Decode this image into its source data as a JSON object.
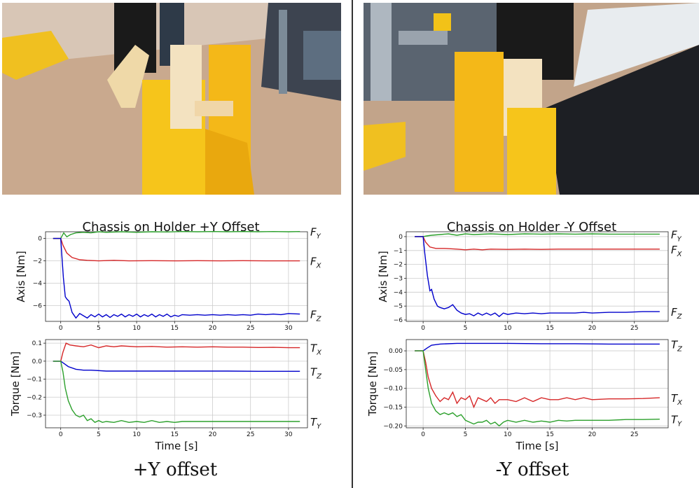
{
  "captions": {
    "left": "+Y offset",
    "right": "-Y offset"
  },
  "photos": {
    "left": {
      "subject": "yellow chassis held by gripper over holder",
      "colors": {
        "table": "#c9a98e",
        "part": "#f6c51b",
        "gripper": "#1a1a1a"
      }
    },
    "right": {
      "subject": "yellow chassis held by gripper over holder",
      "colors": {
        "table": "#c2a48a",
        "part": "#f6c51b",
        "gripper": "#1a1a1a"
      }
    }
  },
  "chart_data": [
    {
      "id": "left-force",
      "type": "line",
      "title": "Chassis on Holder +Y Offset",
      "xlabel": "",
      "ylabel": "Axis [Nm]",
      "xlim": [
        -2,
        32.5
      ],
      "ylim": [
        -7.4,
        0.6
      ],
      "xticks": [
        0,
        5,
        10,
        15,
        20,
        25,
        30
      ],
      "yticks": [
        0,
        -2,
        -4,
        -6
      ],
      "grid": true,
      "series": [
        {
          "name": "F_Y",
          "label_main": "F",
          "label_sub": "Y",
          "color": "#2ca02c",
          "x": [
            -1,
            0,
            0.4,
            0.8,
            1.3,
            2,
            3,
            4,
            5,
            6,
            8,
            10,
            12,
            14,
            16,
            18,
            20,
            22,
            24,
            26,
            28,
            30,
            31.5
          ],
          "y": [
            0,
            0,
            0.5,
            0.15,
            0.35,
            0.5,
            0.55,
            0.5,
            0.6,
            0.55,
            0.6,
            0.55,
            0.6,
            0.58,
            0.62,
            0.6,
            0.62,
            0.6,
            0.62,
            0.6,
            0.62,
            0.6,
            0.62
          ]
        },
        {
          "name": "F_X",
          "label_main": "F",
          "label_sub": "X",
          "color": "#d62728",
          "x": [
            -1,
            0,
            0.3,
            0.8,
            1.5,
            2.5,
            3.5,
            5,
            7,
            9,
            12,
            15,
            18,
            21,
            24,
            27,
            30,
            31.5
          ],
          "y": [
            0,
            0,
            -0.6,
            -1.3,
            -1.7,
            -1.9,
            -1.95,
            -2.0,
            -1.95,
            -2.0,
            -1.98,
            -2.0,
            -1.98,
            -2.0,
            -1.98,
            -2.0,
            -2.0,
            -2.0
          ]
        },
        {
          "name": "F_Z",
          "label_main": "F",
          "label_sub": "Z",
          "color": "#0000cc",
          "x": [
            -1,
            0,
            0.15,
            0.35,
            0.6,
            0.8,
            1.1,
            1.5,
            2,
            2.5,
            3,
            3.5,
            4,
            4.5,
            5,
            5.5,
            6,
            6.5,
            7,
            7.5,
            8,
            8.5,
            9,
            9.5,
            10,
            10.5,
            11,
            11.5,
            12,
            12.5,
            13,
            13.5,
            14,
            14.5,
            15,
            15.5,
            16,
            17,
            18,
            19,
            20,
            21,
            22,
            23,
            24,
            25,
            26,
            27,
            28,
            29,
            30,
            31.5
          ],
          "y": [
            0,
            0,
            -1.5,
            -3.5,
            -5.2,
            -5.4,
            -5.6,
            -6.6,
            -7.1,
            -6.7,
            -6.9,
            -7.1,
            -6.8,
            -7.0,
            -6.75,
            -7.0,
            -6.8,
            -7.05,
            -6.8,
            -6.95,
            -6.75,
            -7.0,
            -6.8,
            -6.95,
            -6.75,
            -7.0,
            -6.8,
            -6.95,
            -6.75,
            -7.0,
            -6.8,
            -6.95,
            -6.75,
            -7.0,
            -6.85,
            -6.95,
            -6.8,
            -6.85,
            -6.8,
            -6.85,
            -6.8,
            -6.85,
            -6.8,
            -6.85,
            -6.8,
            -6.85,
            -6.75,
            -6.8,
            -6.75,
            -6.8,
            -6.7,
            -6.75
          ]
        }
      ]
    },
    {
      "id": "left-torque",
      "type": "line",
      "title": "",
      "xlabel": "Time [s]",
      "ylabel": "Torque [Nm]",
      "xlim": [
        -2,
        32.5
      ],
      "ylim": [
        -0.37,
        0.12
      ],
      "xticks": [
        0,
        5,
        10,
        15,
        20,
        25,
        30
      ],
      "yticks": [
        0.1,
        0,
        -0.1,
        -0.2,
        -0.3
      ],
      "yticklabels": [
        "0.1",
        "0.0",
        "−0.1",
        "−0.2",
        "−0.3"
      ],
      "grid": true,
      "series": [
        {
          "name": "T_X",
          "label_main": "T",
          "label_sub": "X",
          "color": "#d62728",
          "x": [
            -1,
            0,
            0.3,
            0.7,
            1.2,
            2,
            3,
            4,
            5,
            6,
            7,
            8,
            10,
            12,
            14,
            16,
            18,
            20,
            22,
            24,
            26,
            28,
            30,
            31.5
          ],
          "y": [
            0,
            0,
            0.05,
            0.1,
            0.09,
            0.085,
            0.08,
            0.09,
            0.075,
            0.085,
            0.08,
            0.085,
            0.08,
            0.082,
            0.078,
            0.08,
            0.078,
            0.08,
            0.078,
            0.078,
            0.076,
            0.077,
            0.075,
            0.075
          ]
        },
        {
          "name": "T_Z",
          "label_main": "T",
          "label_sub": "Z",
          "color": "#0000cc",
          "x": [
            -1,
            0,
            0.5,
            1,
            2,
            3,
            4,
            6,
            8,
            10,
            14,
            18,
            22,
            26,
            30,
            31.5
          ],
          "y": [
            0,
            0,
            -0.015,
            -0.03,
            -0.045,
            -0.05,
            -0.05,
            -0.055,
            -0.055,
            -0.055,
            -0.055,
            -0.055,
            -0.055,
            -0.056,
            -0.056,
            -0.056
          ]
        },
        {
          "name": "T_Y",
          "label_main": "T",
          "label_sub": "Y",
          "color": "#2ca02c",
          "x": [
            -1,
            0,
            0.3,
            0.6,
            1,
            1.5,
            2,
            2.5,
            3,
            3.5,
            4,
            4.5,
            5,
            5.5,
            6,
            7,
            8,
            9,
            10,
            11,
            12,
            13,
            14,
            15,
            16,
            18,
            20,
            22,
            24,
            26,
            28,
            30,
            31.5
          ],
          "y": [
            0,
            0,
            -0.06,
            -0.15,
            -0.22,
            -0.27,
            -0.3,
            -0.31,
            -0.3,
            -0.33,
            -0.32,
            -0.34,
            -0.33,
            -0.34,
            -0.335,
            -0.34,
            -0.33,
            -0.34,
            -0.335,
            -0.34,
            -0.33,
            -0.34,
            -0.335,
            -0.34,
            -0.335,
            -0.335,
            -0.335,
            -0.335,
            -0.335,
            -0.335,
            -0.335,
            -0.335,
            -0.335
          ]
        }
      ]
    },
    {
      "id": "right-force",
      "type": "line",
      "title": "Chassis on Holder -Y Offset",
      "xlabel": "",
      "ylabel": "Axis [Nm]",
      "xlim": [
        -2,
        29
      ],
      "ylim": [
        -6.1,
        0.35
      ],
      "xticks": [
        0,
        5,
        10,
        15,
        20,
        25
      ],
      "yticks": [
        0,
        -1,
        -2,
        -3,
        -4,
        -5,
        -6
      ],
      "grid": true,
      "series": [
        {
          "name": "F_Y",
          "label_main": "F",
          "label_sub": "Y",
          "color": "#2ca02c",
          "x": [
            -1,
            0,
            0.4,
            1,
            2,
            3,
            4,
            5,
            6,
            8,
            10,
            12,
            14,
            16,
            18,
            20,
            22,
            24,
            26,
            28
          ],
          "y": [
            0,
            0,
            0.05,
            0.1,
            0.15,
            0.2,
            0.1,
            0.2,
            0.15,
            0.2,
            0.15,
            0.2,
            0.18,
            0.2,
            0.18,
            0.2,
            0.18,
            0.18,
            0.18,
            0.18
          ]
        },
        {
          "name": "F_X",
          "label_main": "F",
          "label_sub": "X",
          "color": "#d62728",
          "x": [
            -1,
            0,
            0.3,
            0.8,
            1.5,
            2.5,
            4,
            5,
            6,
            7,
            8,
            10,
            12,
            14,
            16,
            18,
            20,
            22,
            24,
            26,
            28
          ],
          "y": [
            0,
            0,
            -0.4,
            -0.75,
            -0.85,
            -0.85,
            -0.9,
            -0.95,
            -0.9,
            -0.95,
            -0.9,
            -0.92,
            -0.9,
            -0.92,
            -0.9,
            -0.9,
            -0.9,
            -0.9,
            -0.9,
            -0.9,
            -0.9
          ]
        },
        {
          "name": "F_Z",
          "label_main": "F",
          "label_sub": "Z",
          "color": "#0000cc",
          "x": [
            -1,
            0,
            0.2,
            0.5,
            0.8,
            1,
            1.3,
            1.7,
            2,
            2.5,
            3,
            3.5,
            4,
            4.5,
            5,
            5.5,
            6,
            6.5,
            7,
            7.5,
            8,
            8.5,
            9,
            9.5,
            10,
            11,
            12,
            13,
            14,
            15,
            16,
            17,
            18,
            19,
            20,
            22,
            24,
            26,
            28
          ],
          "y": [
            0,
            0,
            -1.2,
            -2.8,
            -3.9,
            -3.8,
            -4.5,
            -5.0,
            -5.1,
            -5.2,
            -5.1,
            -4.9,
            -5.3,
            -5.5,
            -5.6,
            -5.55,
            -5.7,
            -5.5,
            -5.65,
            -5.5,
            -5.65,
            -5.5,
            -5.75,
            -5.5,
            -5.6,
            -5.5,
            -5.55,
            -5.5,
            -5.55,
            -5.5,
            -5.5,
            -5.5,
            -5.5,
            -5.45,
            -5.5,
            -5.45,
            -5.45,
            -5.4,
            -5.4
          ]
        }
      ]
    },
    {
      "id": "right-torque",
      "type": "line",
      "title": "",
      "xlabel": "Time [s]",
      "ylabel": "Torque [Nm]",
      "xlim": [
        -2,
        29
      ],
      "ylim": [
        -0.205,
        0.03
      ],
      "xticks": [
        0,
        5,
        10,
        15,
        20,
        25
      ],
      "yticks": [
        0,
        -0.05,
        -0.1,
        -0.15,
        -0.2
      ],
      "yticklabels": [
        "0.00",
        "−0.05",
        "−0.10",
        "−0.15",
        "−0.20"
      ],
      "grid": true,
      "series": [
        {
          "name": "T_Z",
          "label_main": "T",
          "label_sub": "Z",
          "color": "#0000cc",
          "x": [
            -1,
            0,
            0.5,
            1,
            2,
            4,
            6,
            8,
            10,
            14,
            18,
            22,
            26,
            28
          ],
          "y": [
            0,
            0,
            0.008,
            0.015,
            0.018,
            0.02,
            0.02,
            0.02,
            0.02,
            0.019,
            0.019,
            0.018,
            0.018,
            0.018
          ]
        },
        {
          "name": "T_X",
          "label_main": "T",
          "label_sub": "X",
          "color": "#d62728",
          "x": [
            -1,
            0,
            0.3,
            0.6,
            1,
            1.5,
            2,
            2.5,
            3,
            3.5,
            4,
            4.5,
            5,
            5.5,
            6,
            6.5,
            7,
            7.5,
            8,
            8.5,
            9,
            10,
            11,
            12,
            13,
            14,
            15,
            16,
            17,
            18,
            19,
            20,
            22,
            24,
            26,
            28
          ],
          "y": [
            0,
            0,
            -0.03,
            -0.07,
            -0.1,
            -0.12,
            -0.135,
            -0.125,
            -0.13,
            -0.11,
            -0.14,
            -0.125,
            -0.13,
            -0.12,
            -0.15,
            -0.125,
            -0.13,
            -0.135,
            -0.125,
            -0.14,
            -0.13,
            -0.13,
            -0.135,
            -0.125,
            -0.135,
            -0.125,
            -0.13,
            -0.13,
            -0.125,
            -0.13,
            -0.125,
            -0.13,
            -0.128,
            -0.128,
            -0.127,
            -0.125
          ]
        },
        {
          "name": "T_Y",
          "label_main": "T",
          "label_sub": "Y",
          "color": "#2ca02c",
          "x": [
            -1,
            0,
            0.3,
            0.6,
            1,
            1.5,
            2,
            2.5,
            3,
            3.5,
            4,
            4.5,
            5,
            5.5,
            6,
            6.5,
            7,
            7.5,
            8,
            8.5,
            9,
            9.5,
            10,
            11,
            12,
            13,
            14,
            15,
            16,
            17,
            18,
            20,
            22,
            24,
            26,
            28
          ],
          "y": [
            0,
            0,
            -0.05,
            -0.1,
            -0.14,
            -0.16,
            -0.17,
            -0.165,
            -0.17,
            -0.165,
            -0.175,
            -0.17,
            -0.185,
            -0.19,
            -0.195,
            -0.19,
            -0.19,
            -0.185,
            -0.195,
            -0.19,
            -0.2,
            -0.19,
            -0.185,
            -0.19,
            -0.185,
            -0.19,
            -0.187,
            -0.19,
            -0.185,
            -0.187,
            -0.185,
            -0.185,
            -0.185,
            -0.183,
            -0.183,
            -0.182
          ]
        }
      ]
    }
  ]
}
